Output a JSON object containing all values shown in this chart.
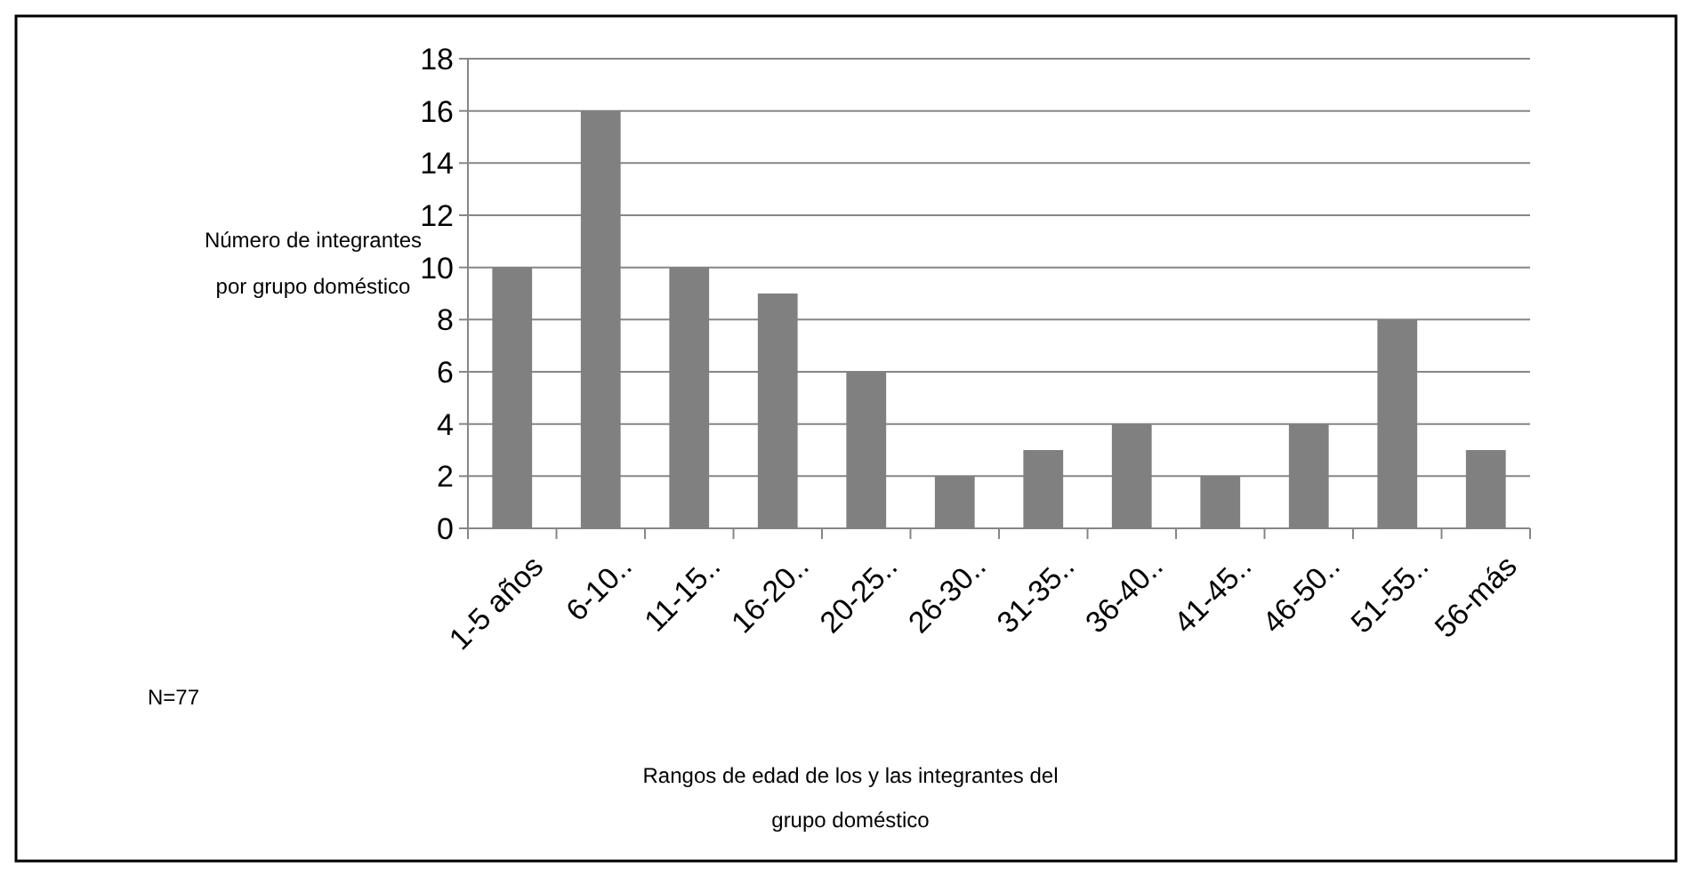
{
  "chart_data": {
    "type": "bar",
    "categories": [
      "1-5 años",
      "6-10..",
      "11-15..",
      "16-20..",
      "20-25..",
      "26-30..",
      "31-35..",
      "36-40..",
      "41-45..",
      "46-50..",
      "51-55..",
      "56-más"
    ],
    "values": [
      10,
      16,
      10,
      9,
      6,
      2,
      3,
      4,
      2,
      4,
      8,
      3
    ],
    "color": "#808080",
    "ylim": [
      0,
      18
    ],
    "yticks": [
      0,
      2,
      4,
      6,
      8,
      10,
      12,
      14,
      16,
      18
    ],
    "grid": "y",
    "ylabel": "Número de integrantes por grupo doméstico",
    "xlabel": "Rangos de edad de los y las integrantes del grupo doméstico",
    "annotations": [
      "N=77"
    ]
  }
}
